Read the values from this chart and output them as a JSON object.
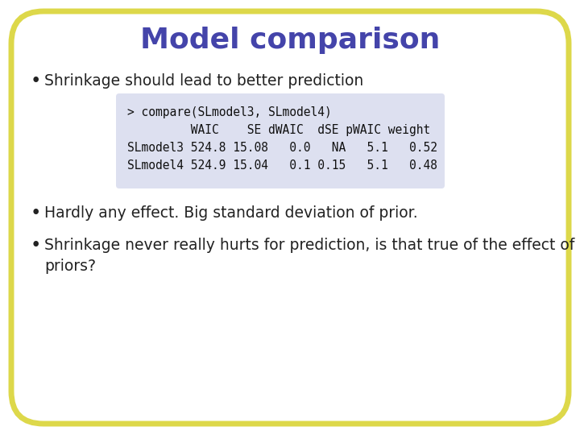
{
  "title": "Model comparison",
  "title_color": "#4444aa",
  "title_fontsize": 26,
  "title_fontweight": "bold",
  "background_color": "#ffffff",
  "border_color": "#ddd84a",
  "border_linewidth": 5,
  "bullet_color": "#222222",
  "bullet_fontsize": 13.5,
  "bullet1": "Shrinkage should lead to better prediction",
  "bullet2": "Hardly any effect. Big standard deviation of prior.",
  "bullet3a": "Shrinkage never really hurts for prediction, is that true of the effect of",
  "bullet3b": "priors?",
  "code_line1": "> compare(SLmodel3, SLmodel4)",
  "code_line2": "         WAIC    SE dWAIC  dSE pWAIC weight",
  "code_line3": "SLmodel3 524.8 15.08   0.0   NA   5.1   0.52",
  "code_line4": "SLmodel4 524.9 15.04   0.1 0.15   5.1   0.48",
  "code_block_bg": "#dde0f0",
  "code_fontsize": 10.5
}
